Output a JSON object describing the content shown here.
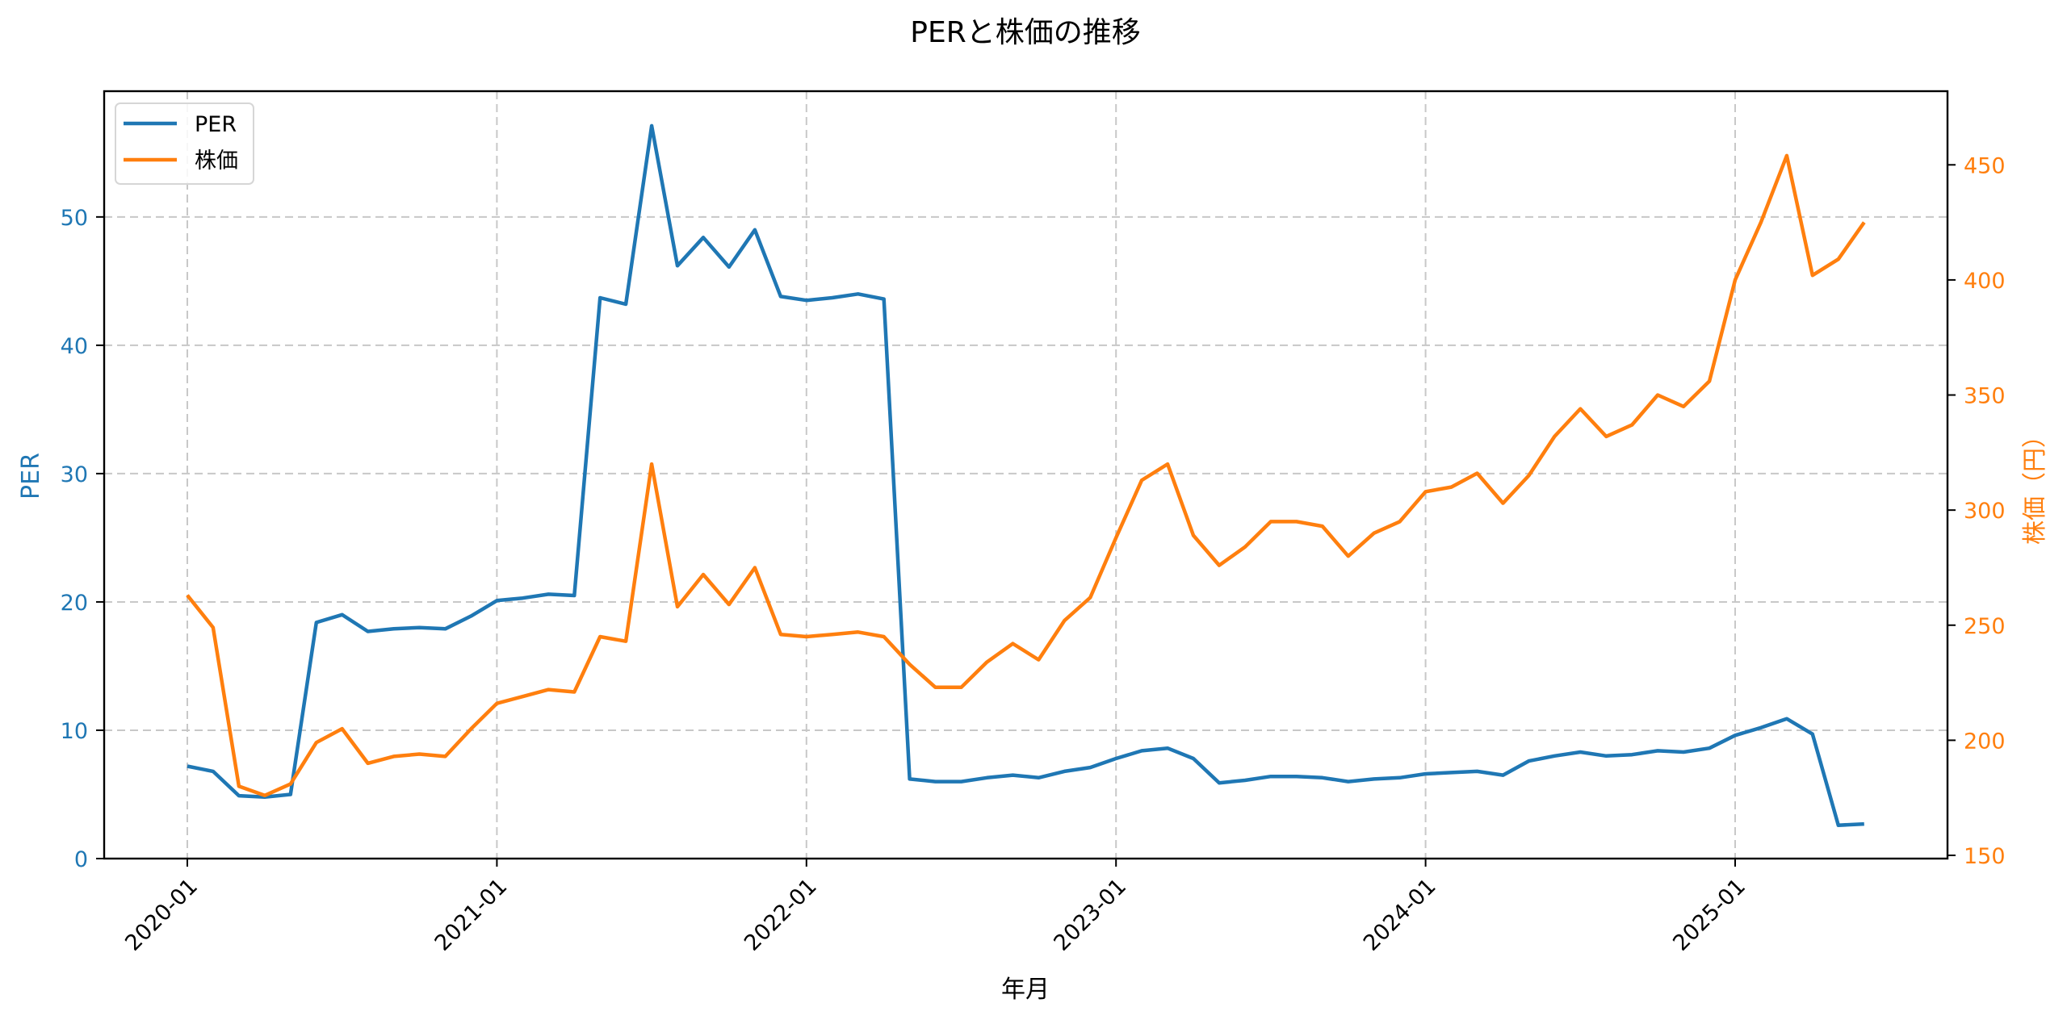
{
  "chart_data": {
    "type": "line",
    "title": "PERと株価の推移",
    "xlabel": "年月",
    "ylabel_left": "PER",
    "ylabel_right": "株価（円）",
    "ylim_left": [
      0,
      59.8
    ],
    "ylim_right": [
      148.6,
      482
    ],
    "yticks_left": [
      0,
      10,
      20,
      30,
      40,
      50
    ],
    "yticks_right": [
      150,
      200,
      250,
      300,
      350,
      400,
      450
    ],
    "xticks": [
      "2020-01",
      "2021-01",
      "2022-01",
      "2023-01",
      "2024-01",
      "2025-01"
    ],
    "grid": true,
    "legend_position": "upper left",
    "x": [
      "2020-01",
      "2020-02",
      "2020-03",
      "2020-04",
      "2020-05",
      "2020-06",
      "2020-07",
      "2020-08",
      "2020-09",
      "2020-10",
      "2020-11",
      "2020-12",
      "2021-01",
      "2021-02",
      "2021-03",
      "2021-04",
      "2021-05",
      "2021-06",
      "2021-07",
      "2021-08",
      "2021-09",
      "2021-10",
      "2021-11",
      "2021-12",
      "2022-01",
      "2022-02",
      "2022-03",
      "2022-04",
      "2022-05",
      "2022-06",
      "2022-07",
      "2022-08",
      "2022-09",
      "2022-10",
      "2022-11",
      "2022-12",
      "2023-01",
      "2023-02",
      "2023-03",
      "2023-04",
      "2023-05",
      "2023-06",
      "2023-07",
      "2023-08",
      "2023-09",
      "2023-10",
      "2023-11",
      "2023-12",
      "2024-01",
      "2024-02",
      "2024-03",
      "2024-04",
      "2024-05",
      "2024-06",
      "2024-07",
      "2024-08",
      "2024-09",
      "2024-10",
      "2024-11",
      "2024-12",
      "2025-01",
      "2025-02",
      "2025-03",
      "2025-04",
      "2025-05",
      "2025-06"
    ],
    "series": [
      {
        "name": "PER",
        "axis": "left",
        "color": "#1f77b4",
        "values": [
          7.2,
          6.8,
          4.9,
          4.8,
          5.0,
          18.4,
          19.0,
          17.7,
          17.9,
          18.0,
          17.9,
          18.9,
          20.1,
          20.3,
          20.6,
          20.5,
          43.7,
          43.2,
          57.1,
          46.2,
          48.4,
          46.1,
          49.0,
          43.8,
          43.5,
          43.7,
          44.0,
          43.6,
          6.2,
          6.0,
          6.0,
          6.3,
          6.5,
          6.3,
          6.8,
          7.1,
          7.8,
          8.4,
          8.6,
          7.8,
          5.9,
          6.1,
          6.4,
          6.4,
          6.3,
          6.0,
          6.2,
          6.3,
          6.6,
          6.7,
          6.8,
          6.5,
          7.6,
          8.0,
          8.3,
          8.0,
          8.1,
          8.4,
          8.3,
          8.6,
          9.6,
          10.2,
          10.9,
          9.7,
          2.6,
          2.7
        ]
      },
      {
        "name": "株価",
        "axis": "right",
        "color": "#ff7f0e",
        "values": [
          263,
          249,
          180,
          176,
          181,
          199,
          205,
          190,
          193,
          194,
          193,
          205,
          216,
          219,
          222,
          221,
          245,
          243,
          320,
          258,
          272,
          259,
          275,
          246,
          245,
          246,
          247,
          245,
          233,
          223,
          223,
          234,
          242,
          235,
          252,
          262,
          288,
          313,
          320,
          289,
          276,
          284,
          295,
          295,
          293,
          280,
          290,
          295,
          308,
          310,
          316,
          303,
          315,
          332,
          344,
          332,
          337,
          350,
          345,
          356,
          400,
          425,
          454,
          402,
          409,
          425
        ]
      }
    ]
  },
  "colors": {
    "per": "#1f77b4",
    "price": "#ff7f0e",
    "grid": "#c8c8c8",
    "axis": "#000000"
  },
  "legend": {
    "items": [
      {
        "label": "PER"
      },
      {
        "label": "株価"
      }
    ]
  }
}
